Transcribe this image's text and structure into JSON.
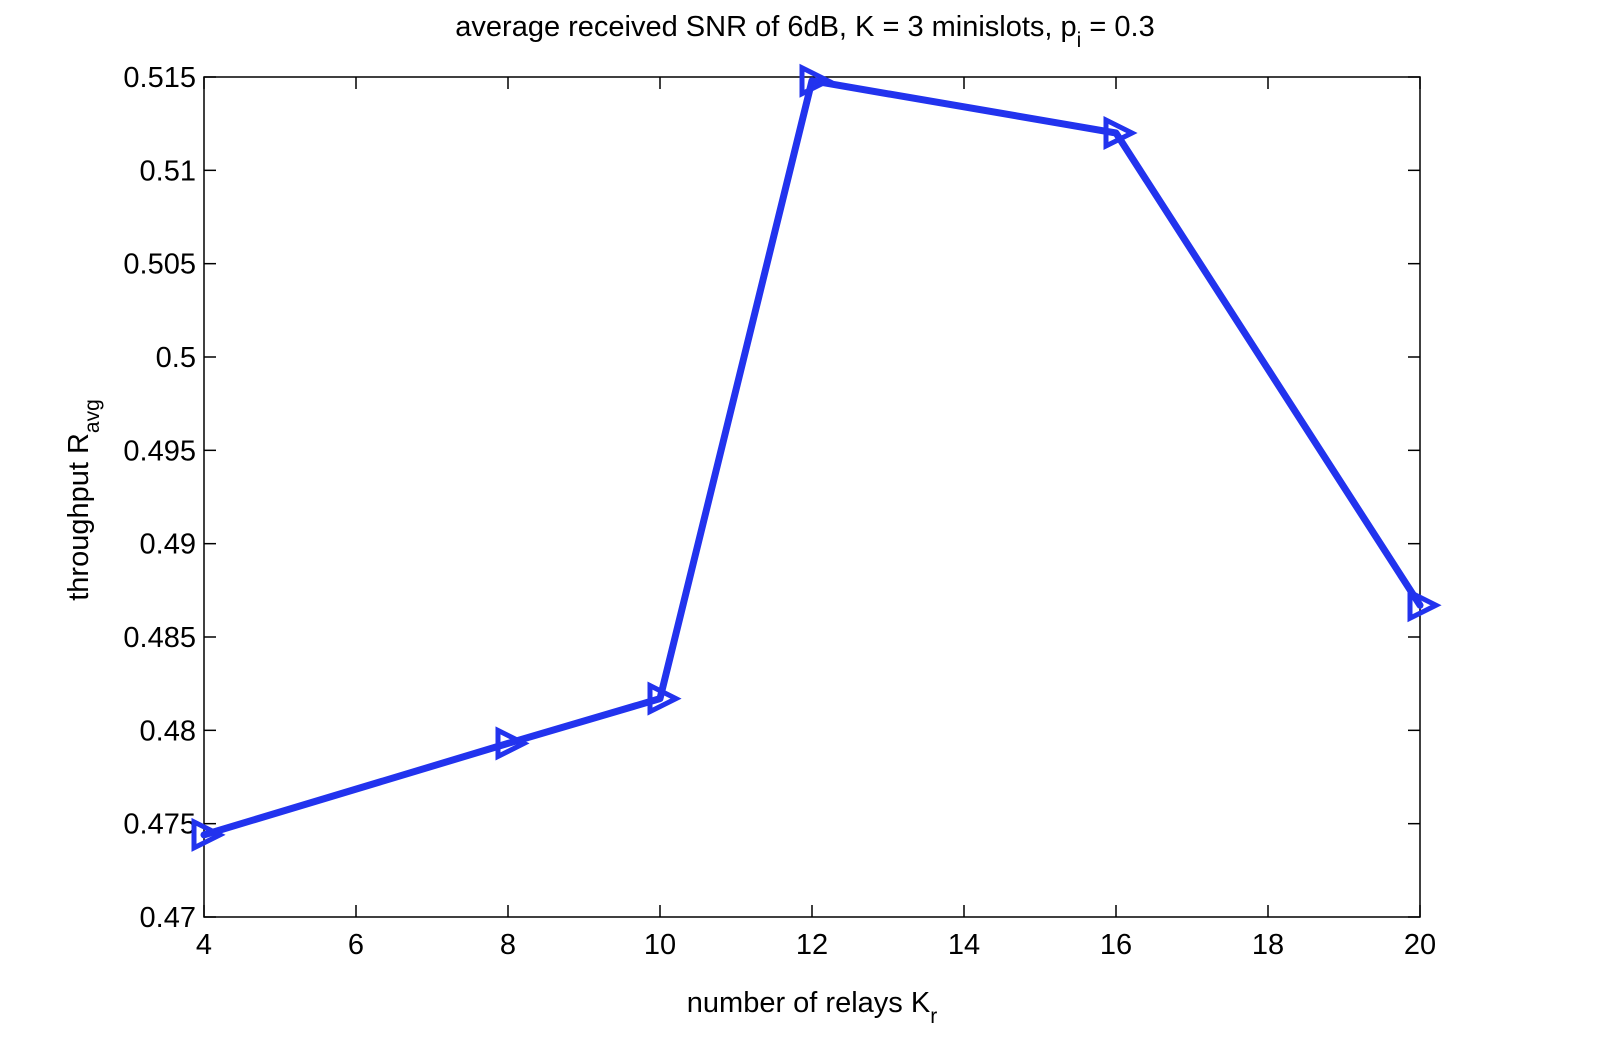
{
  "chart_data": {
    "type": "line",
    "title": {
      "main": "average received SNR of 6dB, K = 3 minislots, p",
      "sub": "i",
      "tail": " = 0.3"
    },
    "xlabel": {
      "main": "number of relays K",
      "sub": "r"
    },
    "ylabel": {
      "main": "throughput R",
      "sub": "avg"
    },
    "xlim": [
      4,
      20
    ],
    "ylim": [
      0.47,
      0.515
    ],
    "xticks": [
      4,
      6,
      8,
      10,
      12,
      14,
      16,
      18,
      20
    ],
    "xtick_labels": [
      "4",
      "6",
      "8",
      "10",
      "12",
      "14",
      "16",
      "18",
      "20"
    ],
    "yticks": [
      0.47,
      0.475,
      0.48,
      0.485,
      0.49,
      0.495,
      0.5,
      0.505,
      0.51,
      0.515
    ],
    "ytick_labels": [
      "0.47",
      "0.475",
      "0.48",
      "0.485",
      "0.49",
      "0.495",
      "0.5",
      "0.505",
      "0.51",
      "0.515"
    ],
    "grid": false,
    "series": [
      {
        "color": "#2233ee",
        "marker": "triangle-right",
        "x": [
          4,
          8,
          10,
          12,
          16,
          20
        ],
        "y": [
          0.4744,
          0.4793,
          0.4817,
          0.5148,
          0.512,
          0.4867
        ]
      }
    ]
  }
}
